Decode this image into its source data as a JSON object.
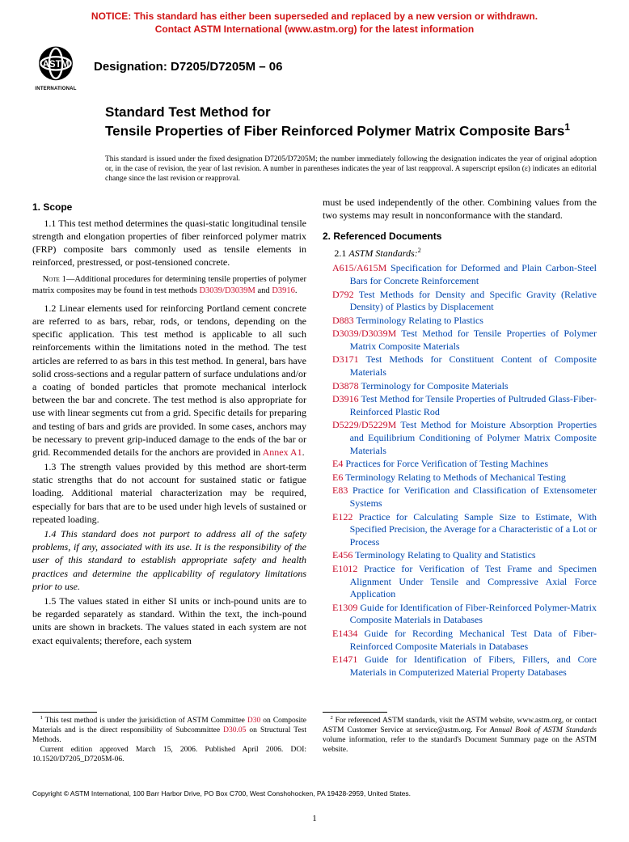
{
  "colors": {
    "notice": "#d11414",
    "link_red": "#c8102e",
    "link_blue": "#0046ad",
    "text": "#000000",
    "bg": "#ffffff"
  },
  "notice": {
    "line1": "NOTICE: This standard has either been superseded and replaced by a new version or withdrawn.",
    "line2": "Contact ASTM International (www.astm.org) for the latest information"
  },
  "logo": {
    "name": "ASTM",
    "sub": "INTERNATIONAL"
  },
  "designation": "Designation: D7205/D7205M – 06",
  "title": {
    "prefix": "Standard Test Method for",
    "main": "Tensile Properties of Fiber Reinforced Polymer Matrix Composite Bars",
    "sup": "1"
  },
  "issue_note": "This standard is issued under the fixed designation D7205/D7205M; the number immediately following the designation indicates the year of original adoption or, in the case of revision, the year of last revision. A number in parentheses indicates the year of last reapproval. A superscript epsilon (ε) indicates an editorial change since the last revision or reapproval.",
  "left": {
    "scope_head": "1. Scope",
    "p11": "1.1 This test method determines the quasi-static longitudinal tensile strength and elongation properties of fiber reinforced polymer matrix (FRP) composite bars commonly used as tensile elements in reinforced, prestressed, or post-tensioned concrete.",
    "note1_label": "Note 1—",
    "note1_a": "Additional procedures for determining tensile properties of polymer matrix composites may be found in test methods ",
    "note1_link1": "D3039/D3039M",
    "note1_b": " and ",
    "note1_link2": "D3916",
    "note1_c": ".",
    "p12_a": "1.2 Linear elements used for reinforcing Portland cement concrete are referred to as bars, rebar, rods, or tendons, depending on the specific application. This test method is applicable to all such reinforcements within the limitations noted in the method. The test articles are referred to as bars in this test method. In general, bars have solid cross-sections and a regular pattern of surface undulations and/or a coating of bonded particles that promote mechanical interlock between the bar and concrete. The test method is also appropriate for use with linear segments cut from a grid. Specific details for preparing and testing of bars and grids are provided. In some cases, anchors may be necessary to prevent grip-induced damage to the ends of the bar or grid. Recommended details for the anchors are provided in ",
    "p12_link": "Annex A1",
    "p12_b": ".",
    "p13": "1.3 The strength values provided by this method are short-term static strengths that do not account for sustained static or fatigue loading. Additional material characterization may be required, especially for bars that are to be used under high levels of sustained or repeated loading.",
    "p14": "1.4 This standard does not purport to address all of the safety problems, if any, associated with its use. It is the responsibility of the user of this standard to establish appropriate safety and health practices and determine the applicability of regulatory limitations prior to use.",
    "p15": "1.5 The values stated in either SI units or inch-pound units are to be regarded separately as standard. Within the text, the inch-pound units are shown in brackets. The values stated in each system are not exact equivalents; therefore, each system"
  },
  "right": {
    "cont": "must be used independently of the other. Combining values from the two systems may result in nonconformance with the standard.",
    "ref_head": "2. Referenced Documents",
    "sub21_a": "2.1 ",
    "sub21_b": "ASTM Standards:",
    "sub21_sup": "2",
    "refs": [
      {
        "code": "A615/A615M",
        "title": "Specification for Deformed and Plain Carbon-Steel Bars for Concrete Reinforcement"
      },
      {
        "code": "D792",
        "title": "Test Methods for Density and Specific Gravity (Relative Density) of Plastics by Displacement"
      },
      {
        "code": "D883",
        "title": "Terminology Relating to Plastics"
      },
      {
        "code": "D3039/D3039M",
        "title": "Test Method for Tensile Properties of Polymer Matrix Composite Materials"
      },
      {
        "code": "D3171",
        "title": "Test Methods for Constituent Content of Composite Materials"
      },
      {
        "code": "D3878",
        "title": "Terminology for Composite Materials"
      },
      {
        "code": "D3916",
        "title": "Test Method for Tensile Properties of Pultruded Glass-Fiber-Reinforced Plastic Rod"
      },
      {
        "code": "D5229/D5229M",
        "title": "Test Method for Moisture Absorption Properties and Equilibrium Conditioning of Polymer Matrix Composite Materials"
      },
      {
        "code": "E4",
        "title": "Practices for Force Verification of Testing Machines"
      },
      {
        "code": "E6",
        "title": "Terminology Relating to Methods of Mechanical Testing"
      },
      {
        "code": "E83",
        "title": "Practice for Verification and Classification of Extensometer Systems"
      },
      {
        "code": "E122",
        "title": "Practice for Calculating Sample Size to Estimate, With Specified Precision, the Average for a Characteristic of a Lot or Process"
      },
      {
        "code": "E456",
        "title": "Terminology Relating to Quality and Statistics"
      },
      {
        "code": "E1012",
        "title": "Practice for Verification of Test Frame and Specimen Alignment Under Tensile and Compressive Axial Force Application"
      },
      {
        "code": "E1309",
        "title": "Guide for Identification of Fiber-Reinforced Polymer-Matrix Composite Materials in Databases"
      },
      {
        "code": "E1434",
        "title": "Guide for Recording Mechanical Test Data of Fiber-Reinforced Composite Materials in Databases"
      },
      {
        "code": "E1471",
        "title": "Guide for Identification of Fibers, Fillers, and Core Materials in Computerized Material Property Databases"
      }
    ]
  },
  "footnotes": {
    "f1_a": " This test method is under the jurisidiction of ASTM Committee ",
    "f1_link1": "D30",
    "f1_b": " on Composite Materials and is the direct responsibility of Subcommittee ",
    "f1_link2": "D30.05",
    "f1_c": " on Structural Test Methods.",
    "f1_d": "Current edition approved March 15, 2006. Published April 2006. DOI: 10.1520/D7205_D7205M-06.",
    "f2_a": " For referenced ASTM standards, visit the ASTM website, www.astm.org, or contact ASTM Customer Service at service@astm.org. For ",
    "f2_b": "Annual Book of ASTM Standards",
    "f2_c": " volume information, refer to the standard's Document Summary page on the ASTM website."
  },
  "copyright": "Copyright © ASTM International, 100 Barr Harbor Drive, PO Box C700, West Conshohocken, PA 19428-2959, United States.",
  "pagenum": "1"
}
